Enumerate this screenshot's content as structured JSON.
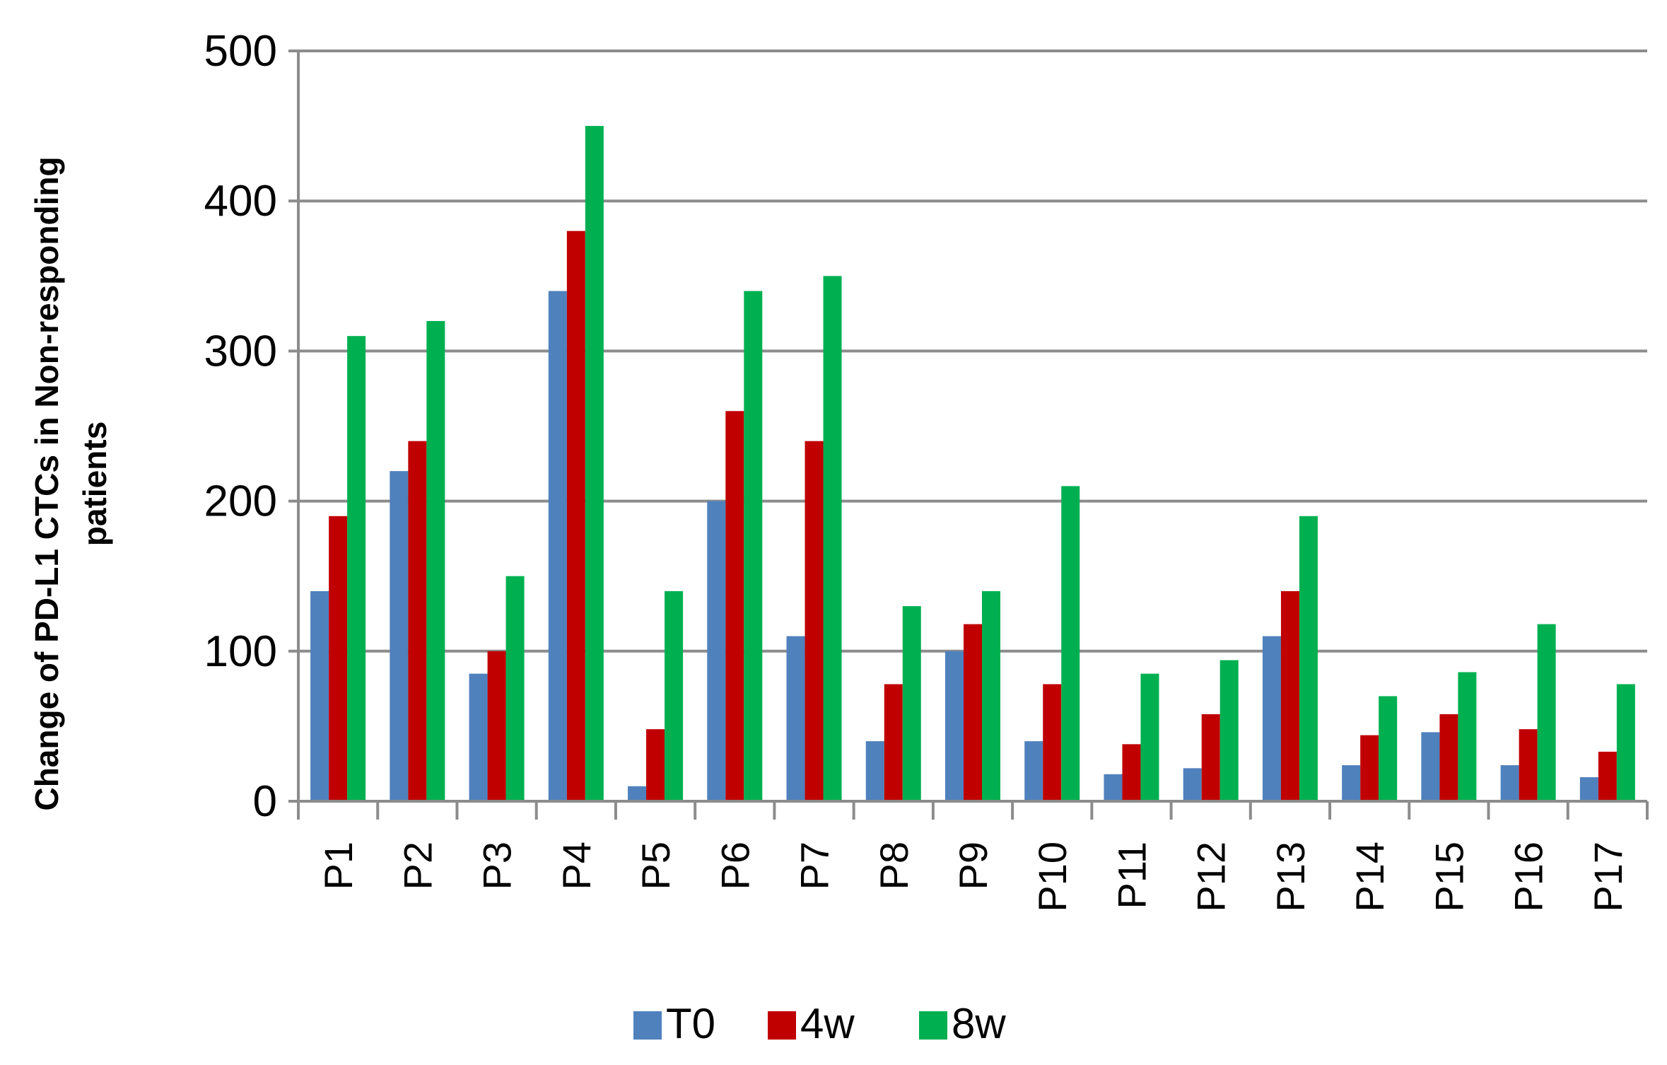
{
  "chart_data": {
    "type": "bar",
    "ylabel_lines": [
      "Change of PD-L1 CTCs in Non-responding",
      "patients"
    ],
    "xlabel": "",
    "ylim": [
      0,
      500
    ],
    "yticks": [
      0,
      100,
      200,
      300,
      400,
      500
    ],
    "grid": true,
    "legend_position": "bottom",
    "categories": [
      "P1",
      "P2",
      "P3",
      "P4",
      "P5",
      "P6",
      "P7",
      "P8",
      "P9",
      "P10",
      "P11",
      "P12",
      "P13",
      "P14",
      "P15",
      "P16",
      "P17"
    ],
    "series": [
      {
        "name": "T0",
        "color": "#4f81bd",
        "values": [
          140,
          220,
          85,
          340,
          10,
          200,
          110,
          40,
          100,
          40,
          18,
          22,
          110,
          24,
          46,
          24,
          16
        ]
      },
      {
        "name": "4w",
        "color": "#c00000",
        "values": [
          190,
          240,
          100,
          380,
          48,
          260,
          240,
          78,
          118,
          78,
          38,
          58,
          140,
          44,
          58,
          48,
          33
        ]
      },
      {
        "name": "8w",
        "color": "#00b050",
        "values": [
          310,
          320,
          150,
          450,
          140,
          340,
          350,
          130,
          140,
          210,
          85,
          94,
          190,
          70,
          86,
          118,
          78
        ]
      }
    ]
  }
}
